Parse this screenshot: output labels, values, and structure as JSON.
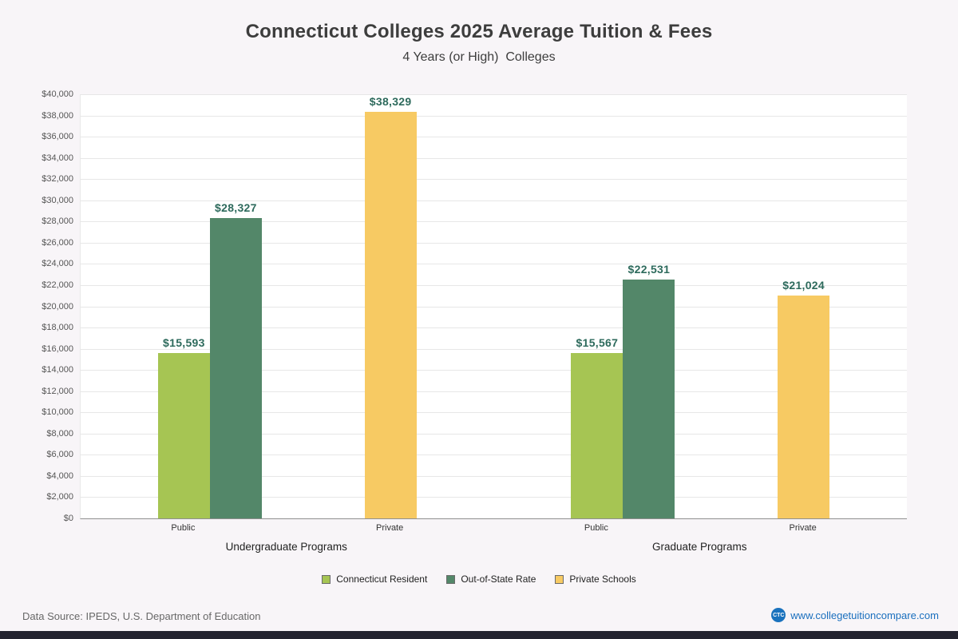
{
  "title": "Connecticut Colleges 2025 Average Tuition & Fees",
  "subtitle": "4 Years (or High)  Colleges",
  "chart_data": {
    "type": "bar",
    "title": "Connecticut Colleges 2025 Average Tuition & Fees",
    "subtitle": "4 Years (or High)  Colleges",
    "ylabel": "",
    "xlabel": "",
    "ylim": [
      0,
      40000
    ],
    "ytick_step": 2000,
    "ytick_prefix": "$",
    "grid": true,
    "legend_position": "bottom",
    "groups": [
      {
        "label": "Undergraduate Programs",
        "slots": [
          {
            "tick": "Public",
            "bars": [
              {
                "series": "Connecticut Resident",
                "value": 15593
              },
              {
                "series": "Out-of-State Rate",
                "value": 28327
              }
            ]
          },
          {
            "tick": "Private",
            "bars": [
              {
                "series": "Private Schools",
                "value": 38329
              }
            ]
          }
        ]
      },
      {
        "label": "Graduate Programs",
        "slots": [
          {
            "tick": "Public",
            "bars": [
              {
                "series": "Connecticut Resident",
                "value": 15567
              },
              {
                "series": "Out-of-State Rate",
                "value": 22531
              }
            ]
          },
          {
            "tick": "Private",
            "bars": [
              {
                "series": "Private Schools",
                "value": 21024
              }
            ]
          }
        ]
      }
    ],
    "series_colors": {
      "Connecticut Resident": "#a6c553",
      "Out-of-State Rate": "#538769",
      "Private Schools": "#f7ca63"
    },
    "value_label_color": "#2d6a5c",
    "legend": [
      "Connecticut Resident",
      "Out-of-State Rate",
      "Private Schools"
    ]
  },
  "footer": {
    "source": "Data Source: IPEDS, U.S. Department of Education",
    "site": "www.collegetuitioncompare.com",
    "logo": "CTC"
  }
}
